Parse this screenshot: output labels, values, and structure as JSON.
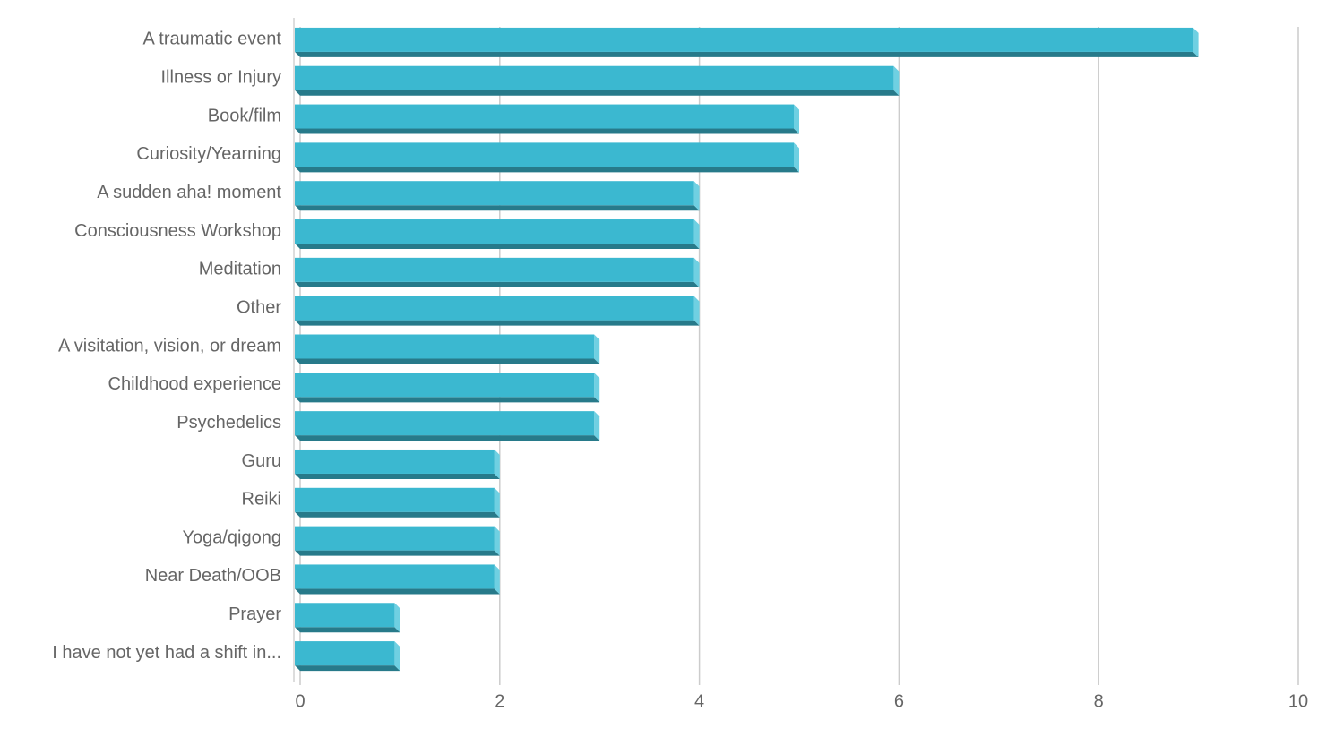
{
  "chart_data": {
    "type": "bar",
    "orientation": "horizontal",
    "categories": [
      "A traumatic event",
      "Illness or Injury",
      "Book/film",
      "Curiosity/Yearning",
      "A sudden aha! moment",
      "Consciousness Workshop",
      "Meditation",
      "Other",
      "A visitation, vision, or dream",
      "Childhood experience",
      "Psychedelics",
      "Guru",
      "Reiki",
      "Yoga/qigong",
      "Near Death/OOB",
      "Prayer",
      "I have not yet had a shift in..."
    ],
    "values": [
      9,
      6,
      5,
      5,
      4,
      4,
      4,
      4,
      3,
      3,
      3,
      2,
      2,
      2,
      2,
      1,
      1
    ],
    "color": "#3bb8d0",
    "xlim": [
      0,
      10
    ],
    "xticks": [
      0,
      2,
      4,
      6,
      8,
      10
    ],
    "grid": true
  }
}
